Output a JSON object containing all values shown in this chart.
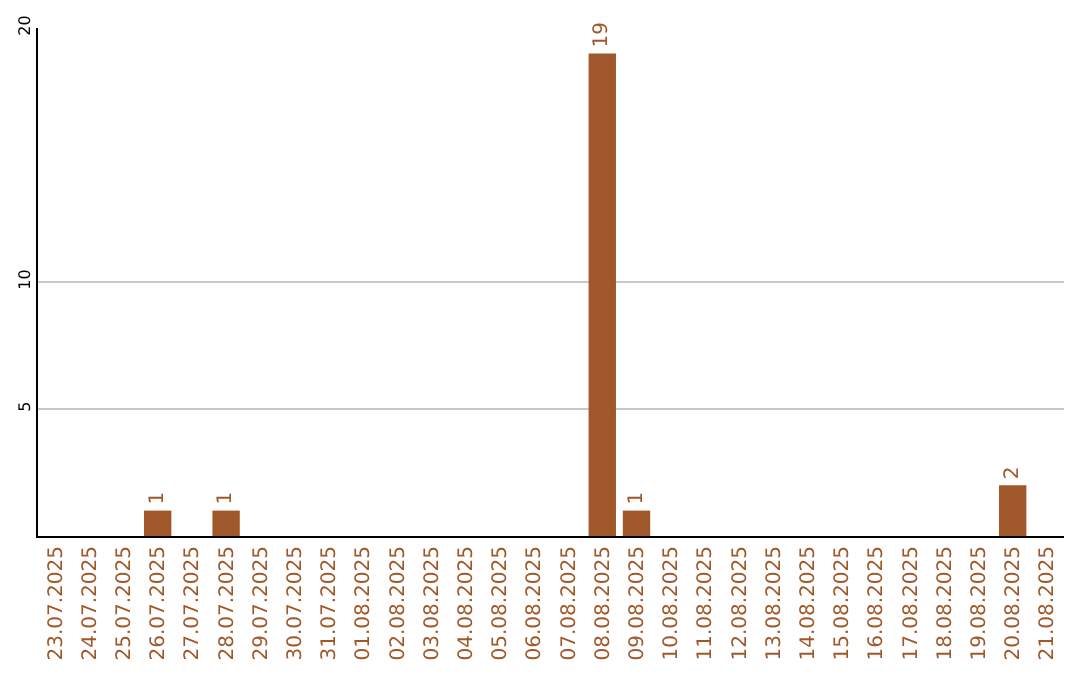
{
  "chart_data": {
    "type": "bar",
    "categories": [
      "23.07.2025",
      "24.07.2025",
      "25.07.2025",
      "26.07.2025",
      "27.07.2025",
      "28.07.2025",
      "29.07.2025",
      "30.07.2025",
      "31.07.2025",
      "01.08.2025",
      "02.08.2025",
      "03.08.2025",
      "04.08.2025",
      "05.08.2025",
      "06.08.2025",
      "07.08.2025",
      "08.08.2025",
      "09.08.2025",
      "10.08.2025",
      "11.08.2025",
      "12.08.2025",
      "13.08.2025",
      "14.08.2025",
      "15.08.2025",
      "16.08.2025",
      "17.08.2025",
      "18.08.2025",
      "19.08.2025",
      "20.08.2025",
      "21.08.2025"
    ],
    "values": [
      0,
      0,
      0,
      1,
      0,
      1,
      0,
      0,
      0,
      0,
      0,
      0,
      0,
      0,
      0,
      0,
      19,
      1,
      0,
      0,
      0,
      0,
      0,
      0,
      0,
      0,
      0,
      0,
      2,
      0
    ],
    "value_labels": [
      null,
      null,
      null,
      "1",
      null,
      "1",
      null,
      null,
      null,
      null,
      null,
      null,
      null,
      null,
      null,
      null,
      "19",
      "1",
      null,
      null,
      null,
      null,
      null,
      null,
      null,
      null,
      null,
      null,
      "2",
      null
    ],
    "color": "#a0582a",
    "ylim": [
      0,
      20
    ],
    "yticks": [
      5,
      10,
      20
    ],
    "grid": "y",
    "legend": false
  }
}
